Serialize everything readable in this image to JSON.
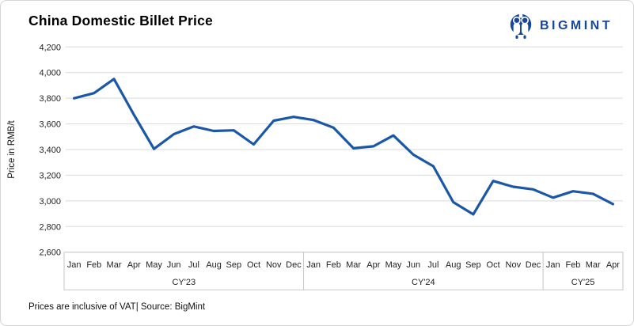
{
  "header": {
    "title": "China Domestic Billet Price",
    "logo_text": "BIGMINT",
    "logo_icon": "bigmint-people-mint-icon",
    "logo_color": "#17469e"
  },
  "footer": {
    "note": "Prices are inclusive of VAT| Source: BigMint"
  },
  "colors": {
    "line": "#1a57a8",
    "gridline": "#d9d9d9",
    "axis_frame": "#c6c6c6",
    "tick_text": "#1f1f1f"
  },
  "chart_data": {
    "type": "line",
    "title": "China Domestic Billet Price",
    "xlabel": "",
    "ylabel": "Price in RMB/t",
    "ylim": [
      2600,
      4200
    ],
    "ytick_step": 200,
    "grid": true,
    "legend": false,
    "x_groups": [
      {
        "label": "CY'23",
        "months": [
          "Jan",
          "Feb",
          "Mar",
          "Apr",
          "May",
          "Jun",
          "Jul",
          "Aug",
          "Sep",
          "Oct",
          "Nov",
          "Dec"
        ]
      },
      {
        "label": "CY'24",
        "months": [
          "Jan",
          "Feb",
          "Mar",
          "Apr",
          "May",
          "Jun",
          "Jul",
          "Aug",
          "Sep",
          "Oct",
          "Nov",
          "Dec"
        ]
      },
      {
        "label": "CY'25",
        "months": [
          "Jan",
          "Feb",
          "Mar",
          "Apr"
        ]
      }
    ],
    "series": [
      {
        "name": "China Domestic Billet Price (RMB/t)",
        "values": [
          3800,
          3840,
          3950,
          3670,
          3405,
          3520,
          3580,
          3545,
          3550,
          3440,
          3625,
          3655,
          3630,
          3570,
          3410,
          3425,
          3510,
          3360,
          3270,
          2990,
          2895,
          3155,
          3110,
          3090,
          3025,
          3075,
          3055,
          2975
        ]
      }
    ]
  }
}
